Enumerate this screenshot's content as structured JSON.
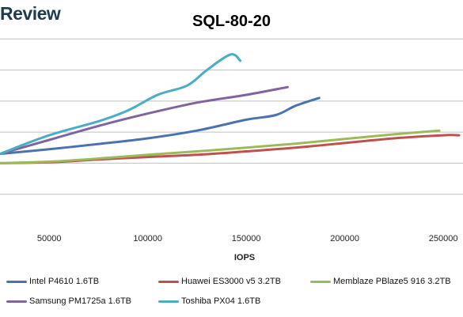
{
  "logo": {
    "text": "Review"
  },
  "chart_data": {
    "type": "line",
    "title": "SQL-80-20",
    "xlabel": "IOPS",
    "ylabel": "",
    "xlim": [
      25000,
      260000
    ],
    "ylim": [
      0,
      7
    ],
    "x_ticks": [
      50000,
      100000,
      150000,
      200000,
      250000
    ],
    "y_gridlines": [
      1,
      2,
      3,
      4,
      5,
      6
    ],
    "grid": true,
    "legend_position": "bottom",
    "series": [
      {
        "name": "Intel P4610 1.6TB",
        "color": "#4a72b0",
        "points": [
          [
            25000,
            2.3
          ],
          [
            50000,
            2.45
          ],
          [
            75000,
            2.62
          ],
          [
            100000,
            2.8
          ],
          [
            125000,
            3.05
          ],
          [
            150000,
            3.4
          ],
          [
            165000,
            3.55
          ],
          [
            175000,
            3.85
          ],
          [
            187000,
            4.1
          ]
        ]
      },
      {
        "name": "Huawei ES3000 v5 3.2TB",
        "color": "#c0504d",
        "points": [
          [
            25000,
            2.0
          ],
          [
            50000,
            2.03
          ],
          [
            75000,
            2.12
          ],
          [
            100000,
            2.2
          ],
          [
            125000,
            2.27
          ],
          [
            150000,
            2.38
          ],
          [
            175000,
            2.5
          ],
          [
            200000,
            2.65
          ],
          [
            225000,
            2.8
          ],
          [
            250000,
            2.9
          ],
          [
            258000,
            2.9
          ]
        ]
      },
      {
        "name": "Memblaze PBlaze5 916 3.2TB",
        "color": "#9bbb59",
        "points": [
          [
            25000,
            2.0
          ],
          [
            50000,
            2.05
          ],
          [
            75000,
            2.15
          ],
          [
            100000,
            2.27
          ],
          [
            125000,
            2.38
          ],
          [
            150000,
            2.5
          ],
          [
            175000,
            2.63
          ],
          [
            200000,
            2.78
          ],
          [
            225000,
            2.93
          ],
          [
            248000,
            3.05
          ]
        ]
      },
      {
        "name": "Samsung PM1725a 1.6TB",
        "color": "#8064a2",
        "points": [
          [
            25000,
            2.3
          ],
          [
            50000,
            2.75
          ],
          [
            75000,
            3.2
          ],
          [
            100000,
            3.6
          ],
          [
            125000,
            3.95
          ],
          [
            150000,
            4.2
          ],
          [
            171000,
            4.45
          ]
        ]
      },
      {
        "name": "Toshiba PX04 1.6TB",
        "color": "#4bacc6",
        "points": [
          [
            25000,
            2.3
          ],
          [
            50000,
            2.9
          ],
          [
            75000,
            3.35
          ],
          [
            90000,
            3.7
          ],
          [
            105000,
            4.2
          ],
          [
            120000,
            4.5
          ],
          [
            130000,
            5.0
          ],
          [
            142000,
            5.5
          ],
          [
            147000,
            5.3
          ]
        ]
      }
    ]
  }
}
